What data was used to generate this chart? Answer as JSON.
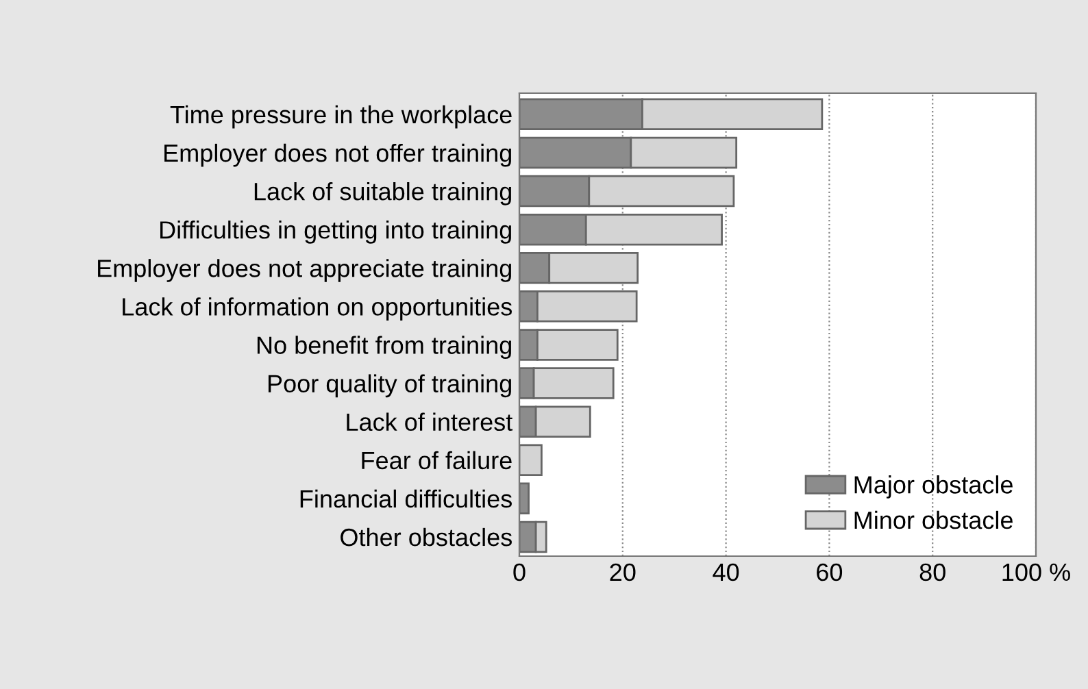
{
  "chart_data": {
    "type": "bar",
    "orientation": "horizontal",
    "stacked": true,
    "categories": [
      "Time pressure in the workplace",
      "Employer does not offer training",
      "Lack of suitable training",
      "Difficulties in getting into training",
      "Employer does not appreciate training",
      "Lack of information on opportunities",
      "No benefit from training",
      "Poor quality of training",
      "Lack of interest",
      "Fear of failure",
      "Financial difficulties",
      "Other obstacles"
    ],
    "series": [
      {
        "name": "Major obstacle",
        "color": "#8c8c8c",
        "values": [
          23.8,
          21.6,
          13.5,
          12.9,
          5.8,
          3.5,
          3.5,
          2.8,
          3.2,
          0,
          1.8,
          3.2
        ]
      },
      {
        "name": "Minor obstacle",
        "color": "#d4d4d4",
        "values": [
          34.8,
          20.4,
          28.0,
          26.3,
          17.1,
          19.2,
          15.5,
          15.4,
          10.5,
          4.3,
          0,
          2.0
        ]
      }
    ],
    "xlim": [
      0,
      100
    ],
    "xticks": [
      0,
      20,
      40,
      60,
      80,
      {
        "value": 100,
        "label": "100 %"
      }
    ],
    "grid": "x",
    "legend": "bottom right"
  }
}
